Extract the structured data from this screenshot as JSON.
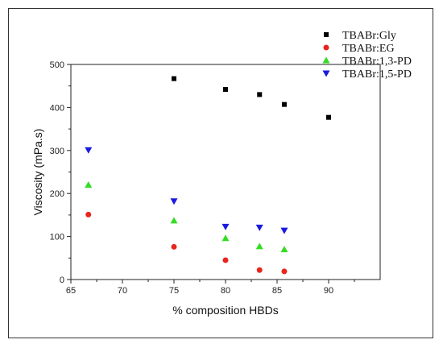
{
  "chart_data": {
    "type": "scatter",
    "title": "",
    "xlabel": "% composition HBDs",
    "ylabel": "Viscosity (mPa.s)",
    "xlim": [
      65,
      95
    ],
    "ylim": [
      0,
      500
    ],
    "xticks": [
      65,
      70,
      75,
      80,
      85,
      90
    ],
    "yticks": [
      0,
      100,
      200,
      300,
      400,
      500
    ],
    "grid": false,
    "legend_position": "top-right",
    "series": [
      {
        "name": "TBABr:Gly",
        "color": "#000000",
        "marker": "square",
        "points": [
          [
            75,
            467
          ],
          [
            80,
            442
          ],
          [
            83.3,
            430
          ],
          [
            85.7,
            407
          ],
          [
            90,
            377
          ]
        ]
      },
      {
        "name": "TBABr:EG",
        "color": "#e8251f",
        "marker": "circle",
        "points": [
          [
            66.7,
            151
          ],
          [
            75,
            76
          ],
          [
            80,
            45
          ],
          [
            83.3,
            22
          ],
          [
            85.7,
            19
          ]
        ]
      },
      {
        "name": "TBABr:1,3-PD",
        "color": "#33dd22",
        "marker": "triangle-up",
        "points": [
          [
            66.7,
            220
          ],
          [
            75,
            137
          ],
          [
            80,
            96
          ],
          [
            83.3,
            77
          ],
          [
            85.7,
            70
          ]
        ]
      },
      {
        "name": "TBABr:1,5-PD",
        "color": "#1a1ae0",
        "marker": "triangle-down",
        "points": [
          [
            66.7,
            301
          ],
          [
            75,
            182
          ],
          [
            80,
            123
          ],
          [
            83.3,
            121
          ],
          [
            85.7,
            114
          ]
        ]
      }
    ]
  }
}
